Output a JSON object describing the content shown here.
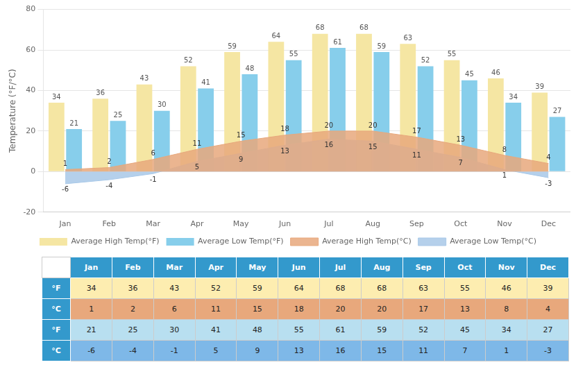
{
  "chart_data": {
    "type": "bar",
    "categories": [
      "Jan",
      "Feb",
      "Mar",
      "Apr",
      "May",
      "Jun",
      "Jul",
      "Aug",
      "Sep",
      "Oct",
      "Nov",
      "Dec"
    ],
    "series": [
      {
        "name": "Average High Temp(°F)",
        "type": "bar",
        "color": "#F5E6A3",
        "values": [
          34,
          36,
          43,
          52,
          59,
          64,
          68,
          68,
          63,
          55,
          46,
          39
        ]
      },
      {
        "name": "Average Low Temp(°F)",
        "type": "bar",
        "color": "#87CEEB",
        "values": [
          21,
          25,
          30,
          41,
          48,
          55,
          61,
          59,
          52,
          45,
          34,
          27
        ]
      },
      {
        "name": "Average High Temp(°C)",
        "type": "area",
        "color": "#E8A87C",
        "values": [
          1,
          2,
          6,
          11,
          15,
          18,
          20,
          20,
          17,
          13,
          8,
          4
        ]
      },
      {
        "name": "Average Low Temp(°C)",
        "type": "area",
        "color": "#A8C8E8",
        "values": [
          -6,
          -4,
          -1,
          5,
          9,
          13,
          16,
          15,
          11,
          7,
          1,
          -3
        ]
      }
    ],
    "ylabel": "Temperature (°F/°C)",
    "ylim": [
      -20,
      80
    ],
    "yticks": [
      -20,
      0,
      20,
      40,
      60,
      80
    ],
    "grid": true,
    "legend": "bottom",
    "data_labels": true,
    "table": {
      "header_color": "#3399CC",
      "rows": [
        {
          "label": "°F",
          "color": "#FDEDB0",
          "values": [
            34,
            36,
            43,
            52,
            59,
            64,
            68,
            68,
            63,
            55,
            46,
            39
          ]
        },
        {
          "label": "°C",
          "color": "#E8A87C",
          "values": [
            1,
            2,
            6,
            11,
            15,
            18,
            20,
            20,
            17,
            13,
            8,
            4
          ]
        },
        {
          "label": "°F",
          "color": "#B8DFF0",
          "values": [
            21,
            25,
            30,
            41,
            48,
            55,
            61,
            59,
            52,
            45,
            34,
            27
          ]
        },
        {
          "label": "°C",
          "color": "#7EB8E8",
          "values": [
            -6,
            -4,
            -1,
            5,
            9,
            13,
            16,
            15,
            11,
            7,
            1,
            -3
          ]
        }
      ]
    }
  }
}
